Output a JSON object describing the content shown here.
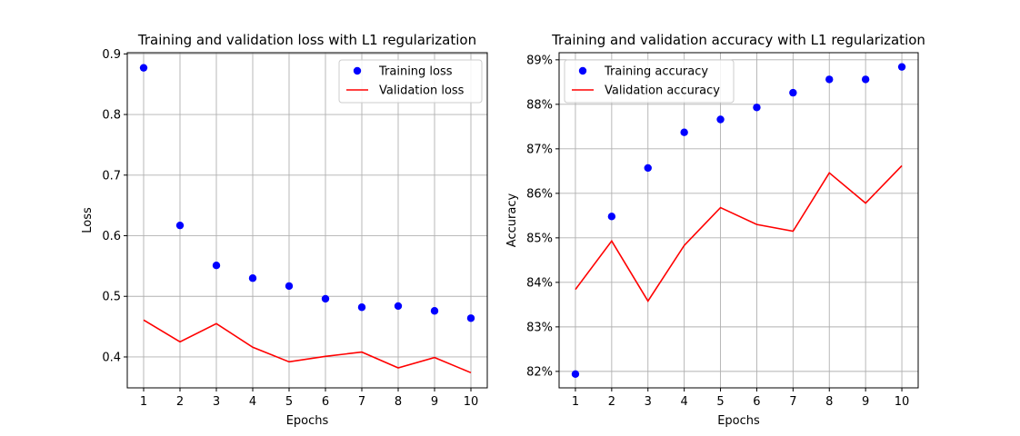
{
  "chart_data": [
    {
      "type": "line",
      "title": "Training and validation loss with L1 regularization",
      "xlabel": "Epochs",
      "ylabel": "Loss",
      "x": [
        1,
        2,
        3,
        4,
        5,
        6,
        7,
        8,
        9,
        10
      ],
      "xlim": [
        0.55,
        10.45
      ],
      "ylim": [
        0.349,
        0.902
      ],
      "xticks": [
        1,
        2,
        3,
        4,
        5,
        6,
        7,
        8,
        9,
        10
      ],
      "yticks": [
        0.4,
        0.5,
        0.6,
        0.7,
        0.8,
        0.9
      ],
      "ytick_labels": [
        "0.4",
        "0.5",
        "0.6",
        "0.7",
        "0.8",
        "0.9"
      ],
      "grid": true,
      "legend_position": "top-right",
      "series": [
        {
          "name": "Training loss",
          "style": "markers",
          "color": "#0000ff",
          "values": [
            0.877,
            0.617,
            0.551,
            0.53,
            0.517,
            0.496,
            0.482,
            0.484,
            0.476,
            0.464
          ]
        },
        {
          "name": "Validation loss",
          "style": "line",
          "color": "#ff0000",
          "values": [
            0.461,
            0.425,
            0.455,
            0.416,
            0.392,
            0.401,
            0.408,
            0.382,
            0.399,
            0.374
          ]
        }
      ]
    },
    {
      "type": "line",
      "title": "Training and validation accuracy with L1 regularization",
      "xlabel": "Epochs",
      "ylabel": "Accuracy",
      "x": [
        1,
        2,
        3,
        4,
        5,
        6,
        7,
        8,
        9,
        10
      ],
      "xlim": [
        0.55,
        10.45
      ],
      "ylim": [
        0.8163,
        0.8916
      ],
      "xticks": [
        1,
        2,
        3,
        4,
        5,
        6,
        7,
        8,
        9,
        10
      ],
      "yticks": [
        0.82,
        0.83,
        0.84,
        0.85,
        0.86,
        0.87,
        0.88,
        0.89
      ],
      "ytick_labels": [
        "82%",
        "83%",
        "84%",
        "85%",
        "86%",
        "87%",
        "88%",
        "89%"
      ],
      "grid": true,
      "legend_position": "top-left",
      "series": [
        {
          "name": "Training accuracy",
          "style": "markers",
          "color": "#0000ff",
          "values": [
            0.8194,
            0.8548,
            0.8657,
            0.8737,
            0.8766,
            0.8793,
            0.8826,
            0.8856,
            0.8856,
            0.8884
          ]
        },
        {
          "name": "Validation accuracy",
          "style": "line",
          "color": "#ff0000",
          "values": [
            0.8384,
            0.8493,
            0.8358,
            0.8483,
            0.8568,
            0.853,
            0.8515,
            0.8646,
            0.8578,
            0.8662
          ]
        }
      ]
    }
  ]
}
